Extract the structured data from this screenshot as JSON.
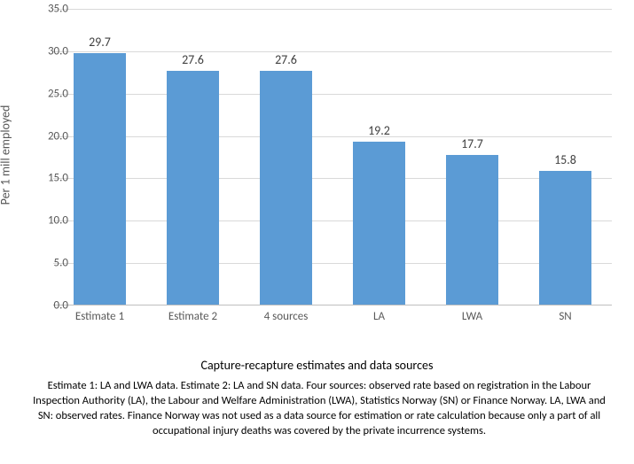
{
  "chart": {
    "type": "bar",
    "ylabel": "Per 1 mill employed",
    "xlabel": "Capture-recapture estimates and data sources",
    "categories": [
      "Estimate 1",
      "Estimate 2",
      "4 sources",
      "LA",
      "LWA",
      "SN"
    ],
    "values": [
      29.7,
      27.6,
      27.6,
      19.2,
      17.7,
      15.8
    ],
    "value_labels": [
      "29.7",
      "27.6",
      "27.6",
      "19.2",
      "17.7",
      "15.8"
    ],
    "bar_color": "#5b9bd5",
    "background_color": "#ffffff",
    "grid_color": "#d9d9d9",
    "axis_color": "#bfbfbf",
    "tick_label_color": "#595959",
    "value_label_color": "#404040",
    "ylim_min": 0,
    "ylim_max": 35,
    "ytick_step": 5,
    "yticks": [
      "0.0",
      "5.0",
      "10.0",
      "15.0",
      "20.0",
      "25.0",
      "30.0",
      "35.0"
    ],
    "bar_width_ratio": 0.56,
    "title_fontsize": 14,
    "tick_fontsize": 13,
    "value_fontsize": 14
  },
  "footnote": "Estimate 1: LA and LWA data. Estimate 2: LA and SN data. Four sources: observed rate based on registration in the Labour Inspection Authority (LA), the Labour and Welfare Administration (LWA), Statistics Norway (SN) or Finance Norway.  LA, LWA and SN: observed rates.  Finance Norway was not used as a data source for estimation or rate calculation because only a part of all occupational injury deaths was covered by the private incurrence systems."
}
